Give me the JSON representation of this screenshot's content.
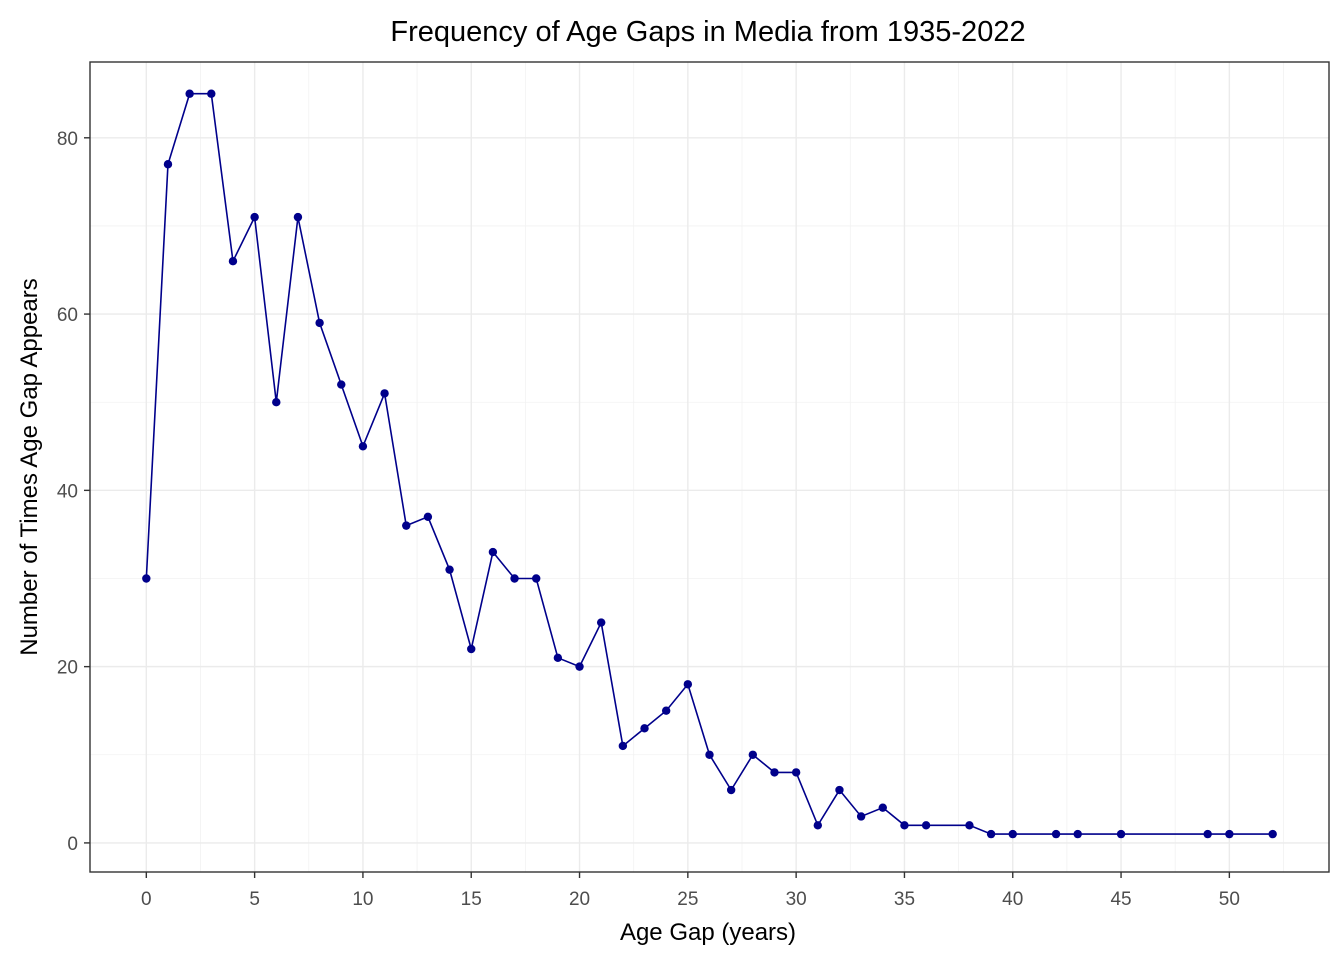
{
  "chart_data": {
    "type": "line",
    "title": "Frequency of Age Gaps in Media from 1935-2022",
    "xlabel": "Age Gap (years)",
    "ylabel": "Number of Times Age Gap Appears",
    "xlim": [
      -2.6,
      54.6
    ],
    "ylim": [
      -3.3,
      88.6
    ],
    "x_ticks": [
      0,
      5,
      10,
      15,
      20,
      25,
      30,
      35,
      40,
      45,
      50
    ],
    "y_ticks": [
      0,
      20,
      40,
      60,
      80
    ],
    "grid": true,
    "legend": "none",
    "line_color": "#00008b",
    "x": [
      0,
      1,
      2,
      3,
      4,
      5,
      6,
      7,
      8,
      9,
      10,
      11,
      12,
      13,
      14,
      15,
      16,
      17,
      18,
      19,
      20,
      21,
      22,
      23,
      24,
      25,
      26,
      27,
      28,
      29,
      30,
      31,
      32,
      33,
      34,
      35,
      36,
      38,
      39,
      40,
      42,
      43,
      45,
      49,
      50,
      52
    ],
    "values": [
      30,
      77,
      85,
      85,
      66,
      71,
      50,
      71,
      59,
      52,
      45,
      51,
      36,
      37,
      31,
      22,
      33,
      30,
      30,
      21,
      20,
      25,
      11,
      13,
      15,
      18,
      10,
      6,
      10,
      8,
      8,
      2,
      6,
      3,
      4,
      2,
      2,
      2,
      1,
      1,
      1,
      1,
      1,
      1,
      1,
      1
    ]
  }
}
